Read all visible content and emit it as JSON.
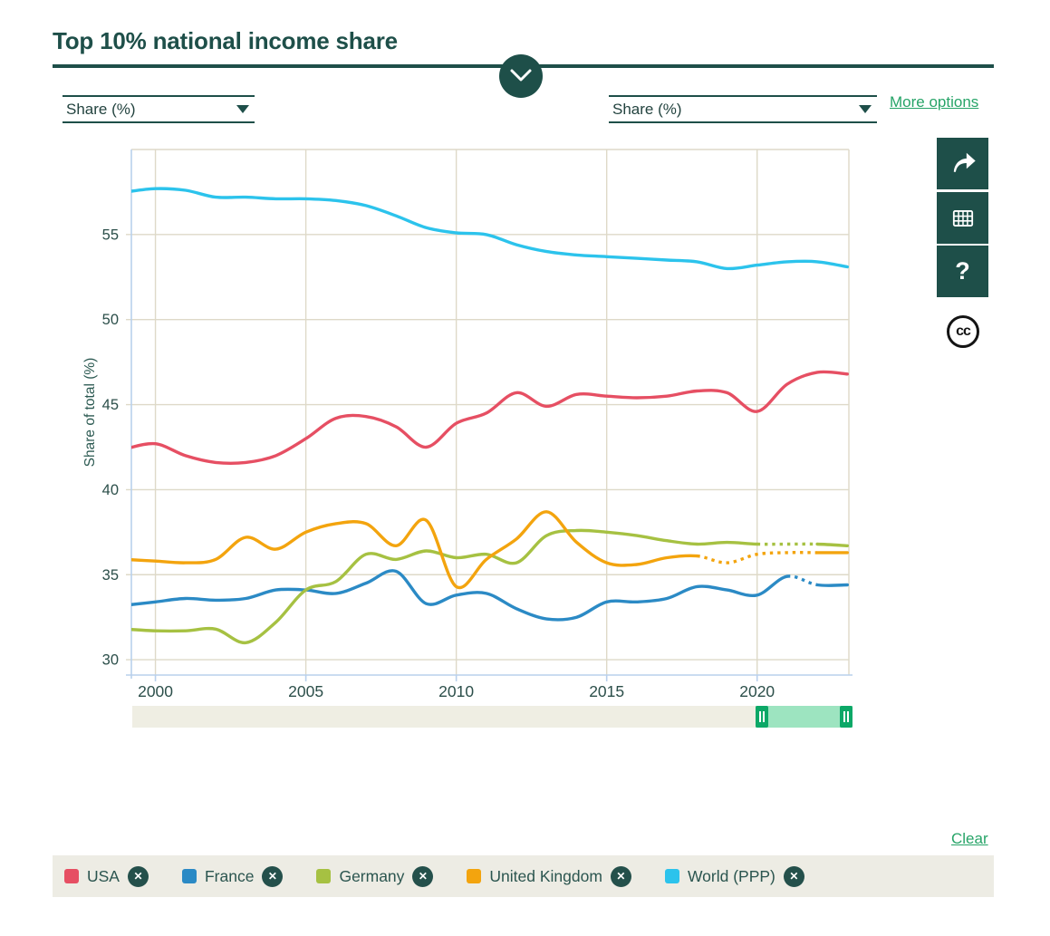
{
  "header": {
    "title": "Top 10% national income share"
  },
  "controls": {
    "left_axis": {
      "value": "Share (%)"
    },
    "right_axis": {
      "value": "Share (%)"
    },
    "more_options_label": "More options",
    "clear_label": "Clear"
  },
  "toolbar": {
    "icons": [
      "share-arrow",
      "data-table",
      "help"
    ],
    "help_glyph": "?",
    "cc_label": "cc",
    "button_color": "#1e4f49"
  },
  "legend": {
    "remove_glyph": "✕"
  },
  "slider": {
    "full_range": [
      1999,
      2023
    ],
    "selected_range": [
      2020,
      2023
    ]
  },
  "chart_data": {
    "type": "line",
    "title": "Top 10% national income share",
    "xlabel": "",
    "ylabel": "Share of total (%)",
    "x_ticks": [
      2000,
      2005,
      2010,
      2015,
      2020
    ],
    "y_ticks": [
      30,
      35,
      40,
      45,
      50,
      55
    ],
    "xlim": [
      1999.2,
      2023.05
    ],
    "ylim": [
      29.1,
      60
    ],
    "grid": true,
    "legend_position": "bottom",
    "grid_color": "#ded9c8",
    "axis_color": "#b9d0ec",
    "tick_label_color": "#2c4f4a",
    "x": [
      1999,
      2000,
      2001,
      2002,
      2003,
      2004,
      2005,
      2006,
      2007,
      2008,
      2009,
      2010,
      2011,
      2012,
      2013,
      2014,
      2015,
      2016,
      2017,
      2018,
      2019,
      2020,
      2021,
      2022,
      2023
    ],
    "series": [
      {
        "name": "USA",
        "color": "#e64f63",
        "values": [
          42.4,
          42.7,
          42.0,
          41.6,
          41.6,
          42.0,
          43.0,
          44.2,
          44.3,
          43.7,
          42.5,
          43.9,
          44.5,
          45.7,
          44.9,
          45.6,
          45.5,
          45.4,
          45.5,
          45.8,
          45.7,
          44.6,
          46.2,
          46.9,
          46.8
        ],
        "dotted": null
      },
      {
        "name": "France",
        "color": "#2b8ac5",
        "values": [
          33.2,
          33.4,
          33.6,
          33.5,
          33.6,
          34.1,
          34.1,
          33.9,
          34.5,
          35.2,
          33.3,
          33.8,
          33.9,
          33.0,
          32.4,
          32.5,
          33.4,
          33.4,
          33.6,
          34.3,
          34.1,
          33.8,
          34.9,
          34.4,
          34.4
        ],
        "dotted": [
          2021,
          2022
        ]
      },
      {
        "name": "Germany",
        "color": "#a6c142",
        "values": [
          31.8,
          31.7,
          31.7,
          31.8,
          31.0,
          32.2,
          34.1,
          34.6,
          36.2,
          35.9,
          36.4,
          36.0,
          36.2,
          35.7,
          37.3,
          37.6,
          37.5,
          37.3,
          37.0,
          36.8,
          36.9,
          36.8,
          36.8,
          36.8,
          36.7
        ],
        "dotted": [
          2020,
          2022
        ]
      },
      {
        "name": "United Kingdom",
        "color": "#f3a40e",
        "values": [
          35.9,
          35.8,
          35.7,
          35.9,
          37.2,
          36.5,
          37.5,
          38.0,
          38.0,
          36.7,
          38.2,
          34.3,
          35.9,
          37.1,
          38.7,
          36.9,
          35.7,
          35.6,
          36.0,
          36.1,
          35.7,
          36.2,
          36.3,
          36.3,
          36.3
        ],
        "dotted": [
          2018,
          2022
        ]
      },
      {
        "name": "World (PPP)",
        "color": "#2cc3ec",
        "values": [
          57.5,
          57.7,
          57.6,
          57.2,
          57.2,
          57.1,
          57.1,
          57.0,
          56.7,
          56.1,
          55.4,
          55.1,
          55.0,
          54.4,
          54.0,
          53.8,
          53.7,
          53.6,
          53.5,
          53.4,
          53.0,
          53.2,
          53.4,
          53.4,
          53.1
        ],
        "dotted": null
      }
    ]
  }
}
